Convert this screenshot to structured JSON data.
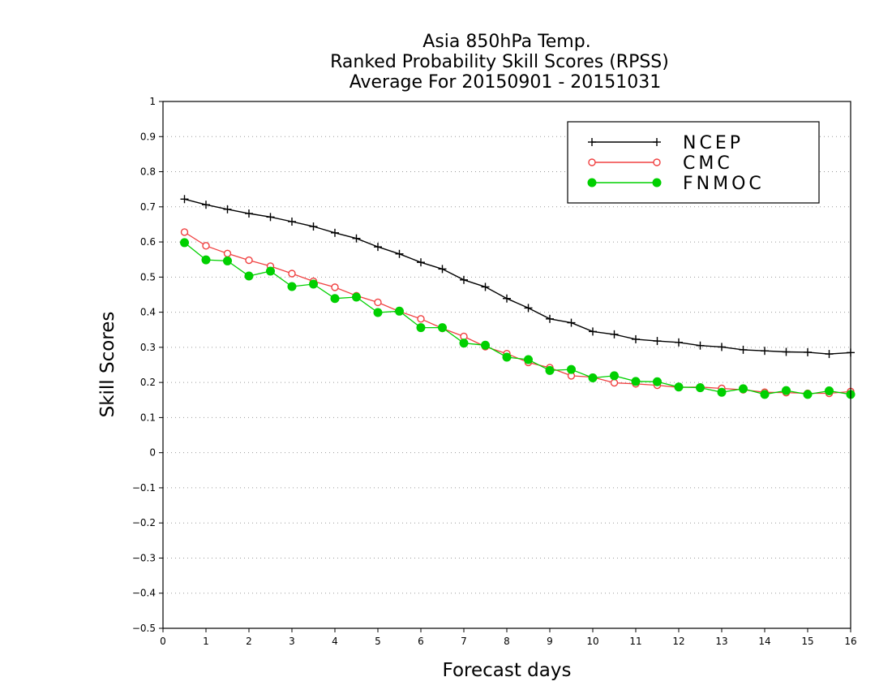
{
  "chart_data": {
    "type": "line",
    "title": [
      "Asia 850hPa Temp.",
      "Ranked Probability Skill Scores (RPSS)",
      "Average For 20150901 - 20151031"
    ],
    "xlabel": "Forecast days",
    "ylabel": "Skill Scores",
    "xlim": [
      0,
      16
    ],
    "ylim": [
      -0.5,
      1
    ],
    "xticks": [
      0,
      1,
      2,
      3,
      4,
      5,
      6,
      7,
      8,
      9,
      10,
      11,
      12,
      13,
      14,
      15,
      16
    ],
    "yticks": [
      -0.5,
      -0.4,
      -0.3,
      -0.2,
      -0.1,
      0,
      0.1,
      0.2,
      0.3,
      0.4,
      0.5,
      0.6,
      0.7,
      0.8,
      0.9,
      1
    ],
    "ytick_labels": [
      "−0.5",
      "−0.4",
      "−0.3",
      "−0.2",
      "−0.1",
      "0",
      "0.1",
      "0.2",
      "0.3",
      "0.4",
      "0.5",
      "0.6",
      "0.7",
      "0.8",
      "0.9",
      "1"
    ],
    "grid": "horizontal-dotted",
    "legend_position": "top-right",
    "x": [
      0.5,
      1,
      1.5,
      2,
      2.5,
      3,
      3.5,
      4,
      4.5,
      5,
      5.5,
      6,
      6.5,
      7,
      7.5,
      8,
      8.5,
      9,
      9.5,
      10,
      10.5,
      11,
      11.5,
      12,
      12.5,
      13,
      13.5,
      14,
      14.5,
      15,
      15.5,
      16
    ],
    "series": [
      {
        "name": "NCEP",
        "color": "#000000",
        "marker": "plus",
        "values": [
          0.722,
          0.706,
          0.693,
          0.681,
          0.671,
          0.658,
          0.644,
          0.626,
          0.61,
          0.586,
          0.566,
          0.542,
          0.523,
          0.492,
          0.472,
          0.439,
          0.412,
          0.381,
          0.37,
          0.345,
          0.337,
          0.323,
          0.318,
          0.314,
          0.305,
          0.301,
          0.293,
          0.29,
          0.287,
          0.286,
          0.281,
          0.285
        ]
      },
      {
        "name": "CMC",
        "color": "#f04040",
        "marker": "open-circle",
        "values": [
          0.628,
          0.589,
          0.567,
          0.548,
          0.531,
          0.51,
          0.488,
          0.471,
          0.447,
          0.428,
          0.402,
          0.381,
          0.354,
          0.331,
          0.302,
          0.282,
          0.257,
          0.242,
          0.219,
          0.215,
          0.199,
          0.196,
          0.192,
          0.186,
          0.187,
          0.183,
          0.179,
          0.172,
          0.171,
          0.169,
          0.169,
          0.174
        ]
      },
      {
        "name": "FNMOC",
        "color": "#00d000",
        "marker": "filled-circle",
        "values": [
          0.598,
          0.549,
          0.546,
          0.503,
          0.517,
          0.473,
          0.48,
          0.439,
          0.443,
          0.399,
          0.403,
          0.356,
          0.356,
          0.312,
          0.306,
          0.272,
          0.265,
          0.234,
          0.237,
          0.213,
          0.219,
          0.203,
          0.202,
          0.187,
          0.185,
          0.172,
          0.182,
          0.166,
          0.177,
          0.166,
          0.176,
          0.166
        ]
      }
    ]
  }
}
